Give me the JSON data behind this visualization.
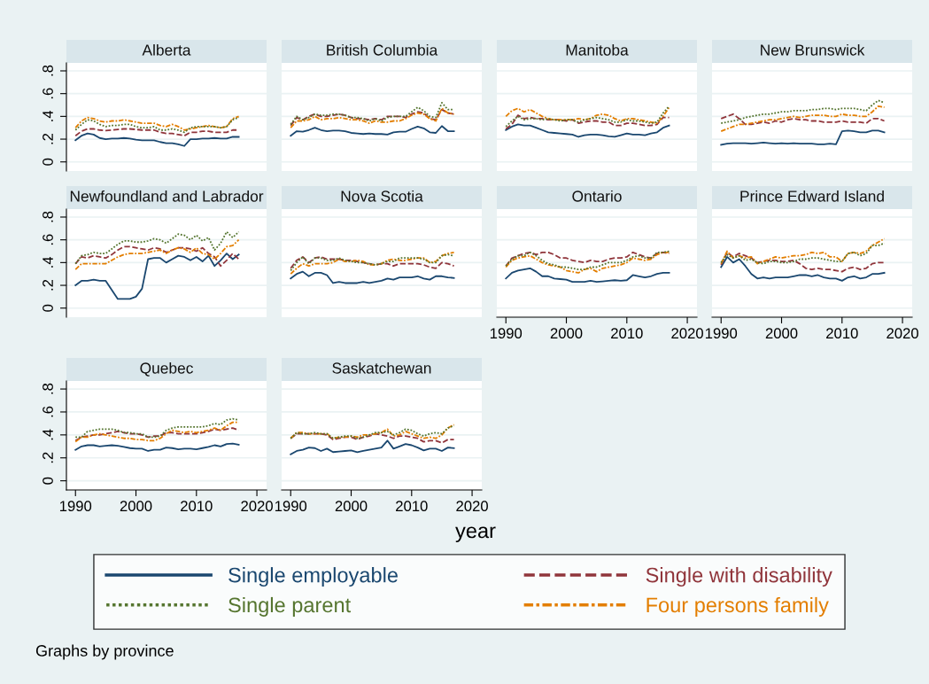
{
  "chart_data": [
    {
      "type": "line",
      "title": "Alberta",
      "tick_labels": "y",
      "legend": "bottom",
      "x": [
        1990,
        1991,
        1992,
        1993,
        1994,
        1995,
        1996,
        1997,
        1998,
        1999,
        2000,
        2001,
        2002,
        2003,
        2004,
        2005,
        2006,
        2007,
        2008,
        2009,
        2010,
        2011,
        2012,
        2013,
        2014,
        2015,
        2016,
        2017
      ],
      "xlim": [
        1988.5,
        2021.6
      ],
      "ylim": [
        -0.08,
        0.87
      ],
      "yticks": [
        0,
        {
          "value": 0.2,
          "label": ".2"
        },
        {
          "value": 0.4,
          "label": ".4"
        },
        {
          "value": 0.6,
          "label": ".6"
        },
        {
          "value": 0.8,
          "label": ".8"
        }
      ],
      "grid": "y",
      "series": [
        {
          "name": "Single employable",
          "color": "#1a476f",
          "line_style": "solid",
          "values": [
            0.19,
            0.23,
            0.25,
            0.24,
            0.21,
            0.2,
            0.205,
            0.205,
            0.21,
            0.205,
            0.195,
            0.19,
            0.19,
            0.19,
            0.175,
            0.165,
            0.165,
            0.155,
            0.14,
            0.2,
            0.2,
            0.205,
            0.205,
            0.21,
            0.205,
            0.205,
            0.22,
            0.22
          ]
        },
        {
          "name": "Single with disability",
          "color": "#90353b",
          "line_style": "dashed",
          "values": [
            0.23,
            0.27,
            0.29,
            0.29,
            0.28,
            0.275,
            0.28,
            0.285,
            0.29,
            0.29,
            0.285,
            0.28,
            0.28,
            0.28,
            0.26,
            0.25,
            0.25,
            0.24,
            0.23,
            0.26,
            0.26,
            0.27,
            0.27,
            0.26,
            0.26,
            0.26,
            0.28,
            0.28
          ]
        },
        {
          "name": "Single parent",
          "color": "#55752f",
          "line_style": "dotted",
          "values": [
            0.28,
            0.33,
            0.37,
            0.36,
            0.33,
            0.31,
            0.32,
            0.32,
            0.33,
            0.33,
            0.31,
            0.3,
            0.3,
            0.31,
            0.28,
            0.28,
            0.29,
            0.28,
            0.26,
            0.3,
            0.31,
            0.31,
            0.31,
            0.31,
            0.3,
            0.31,
            0.37,
            0.39
          ]
        },
        {
          "name": "Four persons family",
          "color": "#e37e00",
          "line_style": "dashdot",
          "values": [
            0.3,
            0.36,
            0.39,
            0.38,
            0.36,
            0.35,
            0.36,
            0.36,
            0.37,
            0.36,
            0.35,
            0.34,
            0.34,
            0.34,
            0.32,
            0.31,
            0.33,
            0.31,
            0.28,
            0.29,
            0.3,
            0.31,
            0.32,
            0.31,
            0.3,
            0.31,
            0.38,
            0.4
          ]
        }
      ]
    },
    {
      "type": "line",
      "title": "British Columbia",
      "tick_labels": false,
      "x": [
        1990,
        1991,
        1992,
        1993,
        1994,
        1995,
        1996,
        1997,
        1998,
        1999,
        2000,
        2001,
        2002,
        2003,
        2004,
        2005,
        2006,
        2007,
        2008,
        2009,
        2010,
        2011,
        2012,
        2013,
        2014,
        2015,
        2016,
        2017
      ],
      "xlim": [
        1988.5,
        2021.6
      ],
      "ylim": [
        -0.08,
        0.87
      ],
      "yticks": [
        {
          "value": 0,
          "label": null
        },
        {
          "value": 0.2,
          "label": null
        },
        {
          "value": 0.4,
          "label": null
        },
        {
          "value": 0.6,
          "label": null
        },
        {
          "value": 0.8,
          "label": null
        }
      ],
      "grid": "y",
      "series": [
        {
          "color": "#1a476f",
          "line_style": "solid",
          "values": [
            0.23,
            0.27,
            0.265,
            0.28,
            0.3,
            0.28,
            0.27,
            0.275,
            0.275,
            0.27,
            0.255,
            0.25,
            0.245,
            0.25,
            0.245,
            0.245,
            0.24,
            0.26,
            0.265,
            0.265,
            0.29,
            0.31,
            0.295,
            0.26,
            0.255,
            0.315,
            0.27,
            0.27
          ]
        },
        {
          "color": "#90353b",
          "line_style": "dashed",
          "values": [
            0.32,
            0.39,
            0.37,
            0.4,
            0.42,
            0.4,
            0.4,
            0.41,
            0.42,
            0.41,
            0.39,
            0.38,
            0.38,
            0.37,
            0.38,
            0.37,
            0.4,
            0.4,
            0.4,
            0.39,
            0.42,
            0.44,
            0.43,
            0.38,
            0.37,
            0.46,
            0.43,
            0.42
          ]
        },
        {
          "color": "#55752f",
          "line_style": "dotted",
          "values": [
            0.33,
            0.4,
            0.37,
            0.39,
            0.42,
            0.41,
            0.41,
            0.42,
            0.42,
            0.41,
            0.39,
            0.39,
            0.38,
            0.36,
            0.38,
            0.36,
            0.39,
            0.4,
            0.4,
            0.4,
            0.44,
            0.48,
            0.45,
            0.4,
            0.39,
            0.52,
            0.46,
            0.46
          ]
        },
        {
          "color": "#e37e00",
          "line_style": "dashdot",
          "values": [
            0.3,
            0.36,
            0.36,
            0.37,
            0.4,
            0.37,
            0.38,
            0.38,
            0.39,
            0.38,
            0.37,
            0.37,
            0.36,
            0.34,
            0.36,
            0.35,
            0.35,
            0.36,
            0.36,
            0.38,
            0.41,
            0.43,
            0.42,
            0.38,
            0.36,
            0.47,
            0.43,
            0.42
          ]
        }
      ]
    },
    {
      "type": "line",
      "title": "Manitoba",
      "tick_labels": false,
      "x": [
        1990,
        1991,
        1992,
        1993,
        1994,
        1995,
        1996,
        1997,
        1998,
        1999,
        2000,
        2001,
        2002,
        2003,
        2004,
        2005,
        2006,
        2007,
        2008,
        2009,
        2010,
        2011,
        2012,
        2013,
        2014,
        2015,
        2016,
        2017
      ],
      "xlim": [
        1988.5,
        2021.6
      ],
      "ylim": [
        -0.08,
        0.87
      ],
      "yticks": [
        {
          "value": 0,
          "label": null
        },
        {
          "value": 0.2,
          "label": null
        },
        {
          "value": 0.4,
          "label": null
        },
        {
          "value": 0.6,
          "label": null
        },
        {
          "value": 0.8,
          "label": null
        }
      ],
      "grid": "y",
      "series": [
        {
          "color": "#1a476f",
          "line_style": "solid",
          "values": [
            0.28,
            0.31,
            0.33,
            0.32,
            0.32,
            0.3,
            0.28,
            0.26,
            0.255,
            0.25,
            0.245,
            0.24,
            0.22,
            0.235,
            0.24,
            0.24,
            0.235,
            0.225,
            0.22,
            0.235,
            0.25,
            0.24,
            0.24,
            0.235,
            0.25,
            0.26,
            0.3,
            0.32
          ]
        },
        {
          "color": "#90353b",
          "line_style": "dashed",
          "values": [
            0.29,
            0.33,
            0.41,
            0.38,
            0.39,
            0.38,
            0.38,
            0.37,
            0.37,
            0.37,
            0.36,
            0.37,
            0.34,
            0.35,
            0.36,
            0.36,
            0.35,
            0.35,
            0.32,
            0.32,
            0.34,
            0.34,
            0.33,
            0.32,
            0.32,
            0.33,
            0.39,
            0.39
          ]
        },
        {
          "color": "#55752f",
          "line_style": "dotted",
          "values": [
            0.31,
            0.36,
            0.4,
            0.37,
            0.38,
            0.38,
            0.37,
            0.38,
            0.37,
            0.36,
            0.37,
            0.37,
            0.35,
            0.37,
            0.38,
            0.39,
            0.38,
            0.37,
            0.35,
            0.35,
            0.37,
            0.36,
            0.36,
            0.35,
            0.34,
            0.35,
            0.43,
            0.49
          ]
        },
        {
          "color": "#e37e00",
          "line_style": "dashdot",
          "values": [
            0.4,
            0.45,
            0.47,
            0.44,
            0.46,
            0.43,
            0.4,
            0.38,
            0.37,
            0.37,
            0.37,
            0.37,
            0.38,
            0.37,
            0.38,
            0.41,
            0.42,
            0.41,
            0.38,
            0.36,
            0.38,
            0.38,
            0.37,
            0.36,
            0.35,
            0.34,
            0.4,
            0.48
          ]
        }
      ]
    },
    {
      "type": "line",
      "title": "New Brunswick",
      "tick_labels": false,
      "x": [
        1990,
        1991,
        1992,
        1993,
        1994,
        1995,
        1996,
        1997,
        1998,
        1999,
        2000,
        2001,
        2002,
        2003,
        2004,
        2005,
        2006,
        2007,
        2008,
        2009,
        2010,
        2011,
        2012,
        2013,
        2014,
        2015,
        2016,
        2017
      ],
      "xlim": [
        1988.5,
        2021.6
      ],
      "ylim": [
        -0.08,
        0.87
      ],
      "yticks": [
        {
          "value": 0,
          "label": null
        },
        {
          "value": 0.2,
          "label": null
        },
        {
          "value": 0.4,
          "label": null
        },
        {
          "value": 0.6,
          "label": null
        },
        {
          "value": 0.8,
          "label": null
        }
      ],
      "grid": "y",
      "series": [
        {
          "color": "#1a476f",
          "line_style": "solid",
          "values": [
            0.15,
            0.16,
            0.165,
            0.165,
            0.165,
            0.16,
            0.165,
            0.17,
            0.165,
            0.16,
            0.165,
            0.16,
            0.165,
            0.16,
            0.16,
            0.16,
            0.155,
            0.155,
            0.16,
            0.155,
            0.27,
            0.275,
            0.27,
            0.26,
            0.26,
            0.275,
            0.275,
            0.26
          ]
        },
        {
          "color": "#90353b",
          "line_style": "dashed",
          "values": [
            0.38,
            0.4,
            0.42,
            0.38,
            0.33,
            0.33,
            0.34,
            0.35,
            0.34,
            0.36,
            0.35,
            0.37,
            0.38,
            0.37,
            0.37,
            0.36,
            0.36,
            0.35,
            0.35,
            0.35,
            0.36,
            0.35,
            0.35,
            0.35,
            0.34,
            0.38,
            0.38,
            0.36
          ]
        },
        {
          "color": "#55752f",
          "line_style": "dotted",
          "values": [
            0.34,
            0.35,
            0.36,
            0.37,
            0.39,
            0.4,
            0.41,
            0.42,
            0.42,
            0.43,
            0.44,
            0.44,
            0.45,
            0.45,
            0.45,
            0.46,
            0.46,
            0.47,
            0.47,
            0.46,
            0.47,
            0.47,
            0.47,
            0.46,
            0.45,
            0.5,
            0.54,
            0.52
          ]
        },
        {
          "color": "#e37e00",
          "line_style": "dashdot",
          "values": [
            0.27,
            0.29,
            0.31,
            0.33,
            0.33,
            0.34,
            0.35,
            0.36,
            0.37,
            0.37,
            0.38,
            0.39,
            0.4,
            0.39,
            0.4,
            0.41,
            0.41,
            0.41,
            0.4,
            0.4,
            0.42,
            0.41,
            0.41,
            0.4,
            0.4,
            0.44,
            0.49,
            0.48
          ]
        }
      ]
    },
    {
      "type": "line",
      "title": "Newfoundland and Labrador",
      "tick_labels": "y",
      "x": [
        1990,
        1991,
        1992,
        1993,
        1994,
        1995,
        1996,
        1997,
        1998,
        1999,
        2000,
        2001,
        2002,
        2003,
        2004,
        2005,
        2006,
        2007,
        2008,
        2009,
        2010,
        2011,
        2012,
        2013,
        2014,
        2015,
        2016,
        2017
      ],
      "xlim": [
        1988.5,
        2021.6
      ],
      "ylim": [
        -0.08,
        0.87
      ],
      "yticks": [
        0,
        {
          "value": 0.2,
          "label": ".2"
        },
        {
          "value": 0.4,
          "label": ".4"
        },
        {
          "value": 0.6,
          "label": ".6"
        },
        {
          "value": 0.8,
          "label": ".8"
        }
      ],
      "grid": "y",
      "series": [
        {
          "color": "#1a476f",
          "line_style": "solid",
          "values": [
            0.2,
            0.24,
            0.24,
            0.25,
            0.24,
            0.24,
            0.16,
            0.08,
            0.08,
            0.08,
            0.1,
            0.17,
            0.43,
            0.44,
            0.44,
            0.4,
            0.43,
            0.46,
            0.45,
            0.42,
            0.45,
            0.41,
            0.46,
            0.37,
            0.42,
            0.48,
            0.43,
            0.47
          ]
        },
        {
          "color": "#90353b",
          "line_style": "dashed",
          "values": [
            0.39,
            0.45,
            0.44,
            0.46,
            0.45,
            0.44,
            0.47,
            0.51,
            0.54,
            0.54,
            0.53,
            0.52,
            0.51,
            0.53,
            0.52,
            0.49,
            0.51,
            0.53,
            0.53,
            0.52,
            0.5,
            0.53,
            0.48,
            0.45,
            0.37,
            0.42,
            0.48,
            0.43
          ]
        },
        {
          "color": "#55752f",
          "line_style": "dotted",
          "values": [
            0.39,
            0.46,
            0.47,
            0.49,
            0.48,
            0.48,
            0.52,
            0.56,
            0.59,
            0.59,
            0.58,
            0.58,
            0.59,
            0.61,
            0.6,
            0.57,
            0.61,
            0.65,
            0.64,
            0.6,
            0.64,
            0.59,
            0.62,
            0.51,
            0.57,
            0.67,
            0.62,
            0.67
          ]
        },
        {
          "color": "#e37e00",
          "line_style": "dashdot",
          "values": [
            0.34,
            0.39,
            0.39,
            0.39,
            0.39,
            0.39,
            0.42,
            0.45,
            0.47,
            0.48,
            0.48,
            0.48,
            0.49,
            0.5,
            0.51,
            0.48,
            0.51,
            0.53,
            0.52,
            0.49,
            0.53,
            0.48,
            0.47,
            0.43,
            0.48,
            0.54,
            0.55,
            0.6
          ]
        }
      ]
    },
    {
      "type": "line",
      "title": "Nova Scotia",
      "tick_labels": false,
      "x": [
        1990,
        1991,
        1992,
        1993,
        1994,
        1995,
        1996,
        1997,
        1998,
        1999,
        2000,
        2001,
        2002,
        2003,
        2004,
        2005,
        2006,
        2007,
        2008,
        2009,
        2010,
        2011,
        2012,
        2013,
        2014,
        2015,
        2016,
        2017
      ],
      "xlim": [
        1988.5,
        2021.6
      ],
      "ylim": [
        -0.08,
        0.87
      ],
      "yticks": [
        {
          "value": 0,
          "label": null
        },
        {
          "value": 0.2,
          "label": null
        },
        {
          "value": 0.4,
          "label": null
        },
        {
          "value": 0.6,
          "label": null
        },
        {
          "value": 0.8,
          "label": null
        }
      ],
      "grid": "y",
      "series": [
        {
          "color": "#1a476f",
          "line_style": "solid",
          "values": [
            0.26,
            0.3,
            0.32,
            0.28,
            0.31,
            0.31,
            0.29,
            0.22,
            0.23,
            0.22,
            0.22,
            0.22,
            0.23,
            0.22,
            0.23,
            0.24,
            0.26,
            0.25,
            0.27,
            0.27,
            0.27,
            0.28,
            0.26,
            0.25,
            0.28,
            0.28,
            0.27,
            0.265
          ]
        },
        {
          "color": "#90353b",
          "line_style": "dashed",
          "values": [
            0.35,
            0.42,
            0.45,
            0.4,
            0.44,
            0.45,
            0.43,
            0.43,
            0.43,
            0.42,
            0.42,
            0.41,
            0.4,
            0.39,
            0.38,
            0.39,
            0.39,
            0.37,
            0.39,
            0.39,
            0.39,
            0.39,
            0.38,
            0.36,
            0.35,
            0.4,
            0.39,
            0.37
          ]
        },
        {
          "color": "#55752f",
          "line_style": "dotted",
          "values": [
            0.33,
            0.4,
            0.45,
            0.39,
            0.44,
            0.44,
            0.42,
            0.42,
            0.44,
            0.42,
            0.41,
            0.4,
            0.4,
            0.39,
            0.38,
            0.39,
            0.41,
            0.41,
            0.44,
            0.44,
            0.44,
            0.44,
            0.43,
            0.4,
            0.4,
            0.46,
            0.47,
            0.46
          ]
        },
        {
          "color": "#e37e00",
          "line_style": "dashdot",
          "values": [
            0.3,
            0.35,
            0.39,
            0.37,
            0.39,
            0.39,
            0.39,
            0.4,
            0.43,
            0.41,
            0.41,
            0.42,
            0.41,
            0.38,
            0.38,
            0.39,
            0.42,
            0.43,
            0.42,
            0.42,
            0.43,
            0.44,
            0.44,
            0.4,
            0.41,
            0.46,
            0.48,
            0.49
          ]
        }
      ]
    },
    {
      "type": "line",
      "title": "Ontario",
      "tick_labels": "x",
      "x": [
        1990,
        1991,
        1992,
        1993,
        1994,
        1995,
        1996,
        1997,
        1998,
        1999,
        2000,
        2001,
        2002,
        2003,
        2004,
        2005,
        2006,
        2007,
        2008,
        2009,
        2010,
        2011,
        2012,
        2013,
        2014,
        2015,
        2016,
        2017
      ],
      "xlim": [
        1988.5,
        2021.6
      ],
      "ylim": [
        -0.08,
        0.87
      ],
      "xticks": [
        1990,
        2000,
        2010,
        2020
      ],
      "yticks": [
        {
          "value": 0,
          "label": null
        },
        {
          "value": 0.2,
          "label": null
        },
        {
          "value": 0.4,
          "label": null
        },
        {
          "value": 0.6,
          "label": null
        },
        {
          "value": 0.8,
          "label": null
        }
      ],
      "grid": "y",
      "series": [
        {
          "color": "#1a476f",
          "line_style": "solid",
          "values": [
            0.26,
            0.31,
            0.33,
            0.34,
            0.35,
            0.32,
            0.28,
            0.28,
            0.26,
            0.255,
            0.25,
            0.23,
            0.23,
            0.23,
            0.24,
            0.23,
            0.235,
            0.24,
            0.245,
            0.24,
            0.245,
            0.29,
            0.28,
            0.27,
            0.28,
            0.3,
            0.31,
            0.31
          ]
        },
        {
          "color": "#90353b",
          "line_style": "dashed",
          "values": [
            0.37,
            0.44,
            0.46,
            0.48,
            0.49,
            0.47,
            0.49,
            0.49,
            0.47,
            0.44,
            0.44,
            0.42,
            0.41,
            0.4,
            0.42,
            0.41,
            0.41,
            0.43,
            0.44,
            0.44,
            0.45,
            0.49,
            0.47,
            0.45,
            0.44,
            0.48,
            0.49,
            0.48
          ]
        },
        {
          "color": "#55752f",
          "line_style": "dotted",
          "values": [
            0.37,
            0.43,
            0.46,
            0.46,
            0.49,
            0.46,
            0.42,
            0.39,
            0.38,
            0.36,
            0.36,
            0.35,
            0.34,
            0.34,
            0.36,
            0.36,
            0.38,
            0.4,
            0.4,
            0.4,
            0.42,
            0.45,
            0.46,
            0.44,
            0.44,
            0.49,
            0.49,
            0.5
          ]
        },
        {
          "color": "#e37e00",
          "line_style": "dashdot",
          "values": [
            0.36,
            0.42,
            0.44,
            0.45,
            0.46,
            0.43,
            0.4,
            0.38,
            0.37,
            0.36,
            0.33,
            0.32,
            0.31,
            0.34,
            0.35,
            0.32,
            0.35,
            0.36,
            0.37,
            0.38,
            0.4,
            0.44,
            0.43,
            0.42,
            0.43,
            0.47,
            0.49,
            0.49
          ]
        }
      ]
    },
    {
      "type": "line",
      "title": "Prince Edward Island",
      "tick_labels": "x",
      "x": [
        1990,
        1991,
        1992,
        1993,
        1994,
        1995,
        1996,
        1997,
        1998,
        1999,
        2000,
        2001,
        2002,
        2003,
        2004,
        2005,
        2006,
        2007,
        2008,
        2009,
        2010,
        2011,
        2012,
        2013,
        2014,
        2015,
        2016,
        2017
      ],
      "xlim": [
        1988.5,
        2021.6
      ],
      "ylim": [
        -0.08,
        0.87
      ],
      "xticks": [
        1990,
        2000,
        2010,
        2020
      ],
      "yticks": [
        {
          "value": 0,
          "label": null
        },
        {
          "value": 0.2,
          "label": null
        },
        {
          "value": 0.4,
          "label": null
        },
        {
          "value": 0.6,
          "label": null
        },
        {
          "value": 0.8,
          "label": null
        }
      ],
      "grid": "y",
      "series": [
        {
          "color": "#1a476f",
          "line_style": "solid",
          "values": [
            0.36,
            0.45,
            0.4,
            0.43,
            0.37,
            0.3,
            0.26,
            0.27,
            0.26,
            0.27,
            0.27,
            0.27,
            0.28,
            0.29,
            0.29,
            0.28,
            0.29,
            0.27,
            0.26,
            0.26,
            0.24,
            0.27,
            0.28,
            0.26,
            0.27,
            0.3,
            0.3,
            0.31
          ]
        },
        {
          "color": "#90353b",
          "line_style": "dashed",
          "values": [
            0.38,
            0.49,
            0.45,
            0.48,
            0.46,
            0.44,
            0.4,
            0.41,
            0.42,
            0.42,
            0.41,
            0.41,
            0.42,
            0.39,
            0.35,
            0.34,
            0.35,
            0.34,
            0.34,
            0.33,
            0.32,
            0.35,
            0.36,
            0.34,
            0.35,
            0.39,
            0.4,
            0.4
          ]
        },
        {
          "color": "#55752f",
          "line_style": "dotted",
          "values": [
            0.4,
            0.47,
            0.44,
            0.46,
            0.42,
            0.43,
            0.4,
            0.39,
            0.41,
            0.41,
            0.4,
            0.4,
            0.41,
            0.43,
            0.43,
            0.44,
            0.44,
            0.43,
            0.42,
            0.41,
            0.41,
            0.48,
            0.49,
            0.46,
            0.48,
            0.55,
            0.55,
            0.57
          ]
        },
        {
          "color": "#e37e00",
          "line_style": "dashdot",
          "values": [
            0.39,
            0.5,
            0.44,
            0.46,
            0.44,
            0.45,
            0.39,
            0.41,
            0.43,
            0.45,
            0.44,
            0.45,
            0.46,
            0.46,
            0.47,
            0.49,
            0.48,
            0.49,
            0.45,
            0.45,
            0.41,
            0.48,
            0.49,
            0.48,
            0.5,
            0.55,
            0.58,
            0.61
          ]
        }
      ]
    },
    {
      "type": "line",
      "title": "Quebec",
      "x": [
        1990,
        1991,
        1992,
        1993,
        1994,
        1995,
        1996,
        1997,
        1998,
        1999,
        2000,
        2001,
        2002,
        2003,
        2004,
        2005,
        2006,
        2007,
        2008,
        2009,
        2010,
        2011,
        2012,
        2013,
        2014,
        2015,
        2016,
        2017
      ],
      "xlim": [
        1988.5,
        2021.6
      ],
      "ylim": [
        -0.08,
        0.87
      ],
      "xticks": [
        1990,
        2000,
        2010,
        2020
      ],
      "yticks": [
        0,
        {
          "value": 0.2,
          "label": ".2"
        },
        {
          "value": 0.4,
          "label": ".4"
        },
        {
          "value": 0.6,
          "label": ".6"
        },
        {
          "value": 0.8,
          "label": ".8"
        }
      ],
      "grid": "y",
      "series": [
        {
          "color": "#1a476f",
          "line_style": "solid",
          "values": [
            0.27,
            0.3,
            0.31,
            0.31,
            0.3,
            0.305,
            0.31,
            0.305,
            0.295,
            0.285,
            0.28,
            0.28,
            0.26,
            0.27,
            0.27,
            0.29,
            0.285,
            0.275,
            0.28,
            0.28,
            0.275,
            0.285,
            0.295,
            0.31,
            0.3,
            0.32,
            0.325,
            0.315
          ]
        },
        {
          "color": "#90353b",
          "line_style": "dashed",
          "values": [
            0.35,
            0.38,
            0.39,
            0.4,
            0.4,
            0.41,
            0.42,
            0.43,
            0.42,
            0.41,
            0.41,
            0.4,
            0.38,
            0.39,
            0.39,
            0.42,
            0.42,
            0.41,
            0.41,
            0.41,
            0.41,
            0.42,
            0.43,
            0.45,
            0.44,
            0.45,
            0.46,
            0.44
          ]
        },
        {
          "color": "#55752f",
          "line_style": "dotted",
          "values": [
            0.38,
            0.38,
            0.43,
            0.44,
            0.45,
            0.45,
            0.45,
            0.44,
            0.42,
            0.42,
            0.41,
            0.41,
            0.38,
            0.38,
            0.39,
            0.44,
            0.46,
            0.47,
            0.47,
            0.47,
            0.47,
            0.47,
            0.48,
            0.5,
            0.49,
            0.53,
            0.54,
            0.53
          ]
        },
        {
          "color": "#e37e00",
          "line_style": "dashdot",
          "values": [
            0.34,
            0.38,
            0.38,
            0.4,
            0.41,
            0.4,
            0.39,
            0.38,
            0.37,
            0.37,
            0.36,
            0.36,
            0.35,
            0.35,
            0.37,
            0.41,
            0.44,
            0.43,
            0.42,
            0.43,
            0.42,
            0.43,
            0.44,
            0.46,
            0.44,
            0.48,
            0.51,
            0.51
          ]
        }
      ]
    },
    {
      "type": "line",
      "title": "Saskatchewan",
      "tick_labels": "x",
      "xlabel": "year",
      "annotations": [
        "Graphs by province"
      ],
      "x": [
        1990,
        1991,
        1992,
        1993,
        1994,
        1995,
        1996,
        1997,
        1998,
        1999,
        2000,
        2001,
        2002,
        2003,
        2004,
        2005,
        2006,
        2007,
        2008,
        2009,
        2010,
        2011,
        2012,
        2013,
        2014,
        2015,
        2016,
        2017
      ],
      "xlim": [
        1988.5,
        2021.6
      ],
      "ylim": [
        -0.08,
        0.87
      ],
      "xticks": [
        1990,
        2000,
        2010,
        2020
      ],
      "yticks": [
        {
          "value": 0,
          "label": null
        },
        {
          "value": 0.2,
          "label": null
        },
        {
          "value": 0.4,
          "label": null
        },
        {
          "value": 0.6,
          "label": null
        },
        {
          "value": 0.8,
          "label": null
        }
      ],
      "grid": "y",
      "series": [
        {
          "color": "#1a476f",
          "line_style": "solid",
          "values": [
            0.23,
            0.26,
            0.27,
            0.29,
            0.285,
            0.26,
            0.28,
            0.25,
            0.255,
            0.26,
            0.265,
            0.25,
            0.26,
            0.27,
            0.28,
            0.29,
            0.35,
            0.28,
            0.3,
            0.32,
            0.31,
            0.29,
            0.265,
            0.28,
            0.28,
            0.26,
            0.29,
            0.285
          ]
        },
        {
          "color": "#90353b",
          "line_style": "dashed",
          "values": [
            0.37,
            0.41,
            0.41,
            0.41,
            0.41,
            0.41,
            0.4,
            0.36,
            0.37,
            0.38,
            0.38,
            0.36,
            0.38,
            0.39,
            0.41,
            0.4,
            0.39,
            0.37,
            0.39,
            0.39,
            0.38,
            0.37,
            0.34,
            0.35,
            0.35,
            0.33,
            0.36,
            0.36
          ]
        },
        {
          "color": "#55752f",
          "line_style": "dotted",
          "values": [
            0.37,
            0.42,
            0.41,
            0.41,
            0.42,
            0.41,
            0.41,
            0.37,
            0.38,
            0.39,
            0.39,
            0.37,
            0.38,
            0.4,
            0.42,
            0.42,
            0.43,
            0.4,
            0.42,
            0.45,
            0.44,
            0.41,
            0.39,
            0.41,
            0.42,
            0.41,
            0.46,
            0.48
          ]
        },
        {
          "color": "#e37e00",
          "line_style": "dashdot",
          "values": [
            0.37,
            0.42,
            0.42,
            0.41,
            0.41,
            0.41,
            0.41,
            0.37,
            0.38,
            0.38,
            0.39,
            0.38,
            0.4,
            0.4,
            0.41,
            0.42,
            0.45,
            0.39,
            0.4,
            0.43,
            0.41,
            0.39,
            0.37,
            0.38,
            0.37,
            0.4,
            0.46,
            0.49
          ]
        }
      ]
    }
  ]
}
